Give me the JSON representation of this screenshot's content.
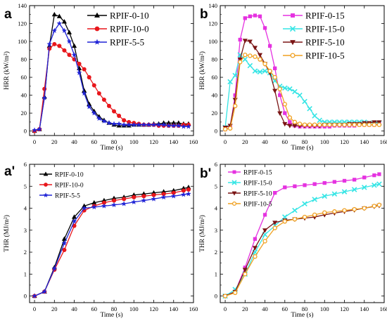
{
  "chart_data": [
    {
      "id": "a",
      "panel_label": "a",
      "type": "line",
      "xlabel": "Time (s)",
      "ylabel": "HRR (kW/m²)",
      "xlim": [
        -5,
        160
      ],
      "ylim": [
        -5,
        140
      ],
      "x_ticks": [
        0,
        20,
        40,
        60,
        80,
        100,
        120,
        140,
        160
      ],
      "y_ticks": [
        0,
        20,
        40,
        60,
        80,
        100,
        120,
        140
      ],
      "legend_position": "top-right",
      "series": [
        {
          "name": "RPIF-0-10",
          "color": "#000000",
          "marker": "triangle",
          "x": [
            0,
            5,
            10,
            15,
            20,
            25,
            30,
            35,
            40,
            45,
            50,
            55,
            60,
            65,
            70,
            75,
            80,
            85,
            90,
            95,
            100,
            105,
            110,
            115,
            120,
            125,
            130,
            135,
            140,
            145,
            150,
            155
          ],
          "y": [
            0,
            2,
            38,
            95,
            130,
            128,
            122,
            110,
            95,
            70,
            45,
            30,
            22,
            16,
            12,
            9,
            7,
            6,
            6,
            6,
            7,
            7,
            7,
            7,
            8,
            8,
            9,
            9,
            9,
            9,
            8,
            8
          ]
        },
        {
          "name": "RPIF-10-0",
          "color": "#e8161b",
          "marker": "circle",
          "x": [
            0,
            5,
            10,
            15,
            20,
            25,
            30,
            35,
            40,
            45,
            50,
            55,
            60,
            65,
            70,
            75,
            80,
            85,
            90,
            95,
            100,
            105,
            110,
            115,
            120,
            125,
            130,
            135,
            140,
            145,
            150,
            155
          ],
          "y": [
            0,
            2,
            47,
            92,
            97,
            95,
            90,
            85,
            80,
            75,
            69,
            60,
            51,
            42,
            35,
            28,
            22,
            17,
            12,
            10,
            9,
            8,
            7,
            7,
            7,
            6,
            6,
            6,
            6,
            6,
            7,
            7
          ]
        },
        {
          "name": "RPIF-5-5",
          "color": "#1f23d6",
          "marker": "star",
          "x": [
            0,
            5,
            10,
            15,
            20,
            25,
            30,
            35,
            40,
            45,
            50,
            55,
            60,
            65,
            70,
            75,
            80,
            85,
            90,
            95,
            100,
            105,
            110,
            115,
            120,
            125,
            130,
            135,
            140,
            145,
            150,
            155
          ],
          "y": [
            1,
            2,
            37,
            97,
            112,
            120,
            112,
            100,
            85,
            65,
            42,
            27,
            20,
            14,
            11,
            9,
            8,
            8,
            7,
            7,
            7,
            7,
            7,
            7,
            7,
            7,
            7,
            6,
            6,
            6,
            5,
            5
          ]
        }
      ]
    },
    {
      "id": "b",
      "panel_label": "b",
      "type": "line",
      "xlabel": "Time (s)",
      "ylabel": "HRR (kW/m²)",
      "xlim": [
        -5,
        160
      ],
      "ylim": [
        -5,
        140
      ],
      "x_ticks": [
        0,
        20,
        40,
        60,
        80,
        100,
        120,
        140,
        160
      ],
      "y_ticks": [
        0,
        20,
        40,
        60,
        80,
        100,
        120,
        140
      ],
      "legend_position": "top-right",
      "series": [
        {
          "name": "RPIF-0-15",
          "color": "#e532e0",
          "marker": "square",
          "x": [
            0,
            5,
            10,
            15,
            20,
            25,
            30,
            35,
            40,
            45,
            50,
            55,
            60,
            65,
            70,
            75,
            80,
            85,
            90,
            95,
            100,
            105,
            110,
            115,
            120,
            125,
            130,
            135,
            140,
            145,
            150,
            155
          ],
          "y": [
            2,
            4,
            40,
            102,
            126,
            128,
            129,
            128,
            115,
            95,
            70,
            40,
            20,
            10,
            6,
            5,
            5,
            5,
            5,
            5,
            5,
            5,
            6,
            6,
            6,
            6,
            6,
            7,
            7,
            7,
            7,
            8
          ]
        },
        {
          "name": "RPIF-15-0",
          "color": "#35e5e5",
          "marker": "x",
          "x": [
            0,
            5,
            10,
            15,
            20,
            25,
            30,
            35,
            40,
            45,
            50,
            55,
            60,
            65,
            70,
            75,
            80,
            85,
            90,
            95,
            100,
            105,
            110,
            115,
            120,
            125,
            130,
            135,
            140,
            145,
            150,
            155
          ],
          "y": [
            4,
            55,
            62,
            85,
            80,
            73,
            67,
            66,
            67,
            65,
            56,
            50,
            48,
            47,
            44,
            40,
            33,
            25,
            17,
            12,
            10,
            10,
            10,
            10,
            10,
            10,
            10,
            10,
            10,
            9,
            9,
            9
          ]
        },
        {
          "name": "RPIF-5-10",
          "color": "#7a1414",
          "marker": "triangle-down",
          "x": [
            0,
            5,
            10,
            15,
            20,
            25,
            30,
            35,
            40,
            45,
            50,
            55,
            60,
            65,
            70,
            75,
            80,
            85,
            90,
            95,
            100,
            105,
            110,
            115,
            120,
            125,
            130,
            135,
            140,
            145,
            150,
            155
          ],
          "y": [
            4,
            6,
            35,
            80,
            101,
            100,
            93,
            85,
            75,
            65,
            45,
            20,
            8,
            6,
            6,
            6,
            6,
            6,
            6,
            6,
            7,
            7,
            7,
            7,
            7,
            8,
            8,
            8,
            9,
            9,
            10,
            10
          ]
        },
        {
          "name": "RPIF-10-5",
          "color": "#f0a020",
          "marker": "circle-open",
          "x": [
            0,
            5,
            10,
            15,
            20,
            25,
            30,
            35,
            40,
            45,
            50,
            55,
            60,
            65,
            70,
            75,
            80,
            85,
            90,
            95,
            100,
            105,
            110,
            115,
            120,
            125,
            130,
            135,
            140,
            145,
            150,
            155
          ],
          "y": [
            2,
            3,
            28,
            77,
            85,
            84,
            83,
            80,
            75,
            67,
            60,
            47,
            30,
            15,
            10,
            8,
            7,
            7,
            7,
            7,
            7,
            7,
            7,
            7,
            7,
            7,
            7,
            7,
            7,
            7,
            7,
            7
          ]
        }
      ]
    },
    {
      "id": "a2",
      "panel_label": "a'",
      "type": "line",
      "xlabel": "Time (s)",
      "ylabel": "THR (MJ/m²)",
      "xlim": [
        -5,
        160
      ],
      "ylim": [
        -0.3,
        6
      ],
      "x_ticks": [
        0,
        20,
        40,
        60,
        80,
        100,
        120,
        140,
        160
      ],
      "y_ticks": [
        0,
        1,
        2,
        3,
        4,
        5,
        6
      ],
      "legend_position": "top-left",
      "series": [
        {
          "name": "RPIF-0-10",
          "color": "#000000",
          "marker": "triangle",
          "x": [
            0,
            10,
            20,
            30,
            40,
            50,
            60,
            70,
            80,
            90,
            100,
            110,
            120,
            130,
            140,
            150,
            155
          ],
          "y": [
            0,
            0.2,
            1.3,
            2.6,
            3.6,
            4.1,
            4.25,
            4.35,
            4.45,
            4.5,
            4.6,
            4.65,
            4.7,
            4.75,
            4.8,
            4.9,
            4.95
          ]
        },
        {
          "name": "RPIF-10-0",
          "color": "#e8161b",
          "marker": "circle",
          "x": [
            0,
            10,
            20,
            30,
            40,
            50,
            60,
            70,
            80,
            90,
            100,
            110,
            120,
            130,
            140,
            150,
            155
          ],
          "y": [
            0,
            0.2,
            1.2,
            2.1,
            3.2,
            3.9,
            4.1,
            4.25,
            4.35,
            4.42,
            4.5,
            4.55,
            4.6,
            4.65,
            4.7,
            4.8,
            4.85
          ]
        },
        {
          "name": "RPIF-5-5",
          "color": "#1f23d6",
          "marker": "star",
          "x": [
            0,
            10,
            20,
            30,
            40,
            50,
            60,
            70,
            80,
            90,
            100,
            110,
            120,
            130,
            140,
            150,
            155
          ],
          "y": [
            0,
            0.2,
            1.25,
            2.4,
            3.4,
            4.0,
            4.05,
            4.1,
            4.15,
            4.2,
            4.28,
            4.35,
            4.42,
            4.5,
            4.55,
            4.62,
            4.65
          ]
        }
      ]
    },
    {
      "id": "b2",
      "panel_label": "b'",
      "type": "line",
      "xlabel": "Time (s)",
      "ylabel": "THR (MJ/m²)",
      "xlim": [
        -5,
        160
      ],
      "ylim": [
        -0.3,
        6
      ],
      "x_ticks": [
        0,
        20,
        40,
        60,
        80,
        100,
        120,
        140,
        160
      ],
      "y_ticks": [
        0,
        1,
        2,
        3,
        4,
        5,
        6
      ],
      "legend_position": "top-left",
      "series": [
        {
          "name": "RPIF-0-15",
          "color": "#e532e0",
          "marker": "square",
          "x": [
            0,
            10,
            20,
            30,
            40,
            50,
            60,
            70,
            80,
            90,
            100,
            110,
            120,
            130,
            140,
            150,
            155
          ],
          "y": [
            0,
            0.2,
            1.3,
            2.6,
            3.7,
            4.7,
            4.95,
            5.0,
            5.05,
            5.1,
            5.15,
            5.2,
            5.25,
            5.3,
            5.4,
            5.5,
            5.55
          ]
        },
        {
          "name": "RPIF-15-0",
          "color": "#35e5e5",
          "marker": "x",
          "x": [
            0,
            10,
            20,
            30,
            40,
            50,
            60,
            70,
            80,
            90,
            100,
            110,
            120,
            130,
            140,
            150,
            155
          ],
          "y": [
            0,
            0.3,
            1.0,
            2.0,
            2.8,
            3.2,
            3.6,
            3.9,
            4.2,
            4.4,
            4.55,
            4.65,
            4.75,
            4.85,
            4.95,
            5.05,
            5.1
          ]
        },
        {
          "name": "RPIF-5-10",
          "color": "#7a1414",
          "marker": "triangle-down",
          "x": [
            0,
            10,
            20,
            30,
            40,
            50,
            60,
            70,
            80,
            90,
            100,
            110,
            120,
            130,
            140,
            150,
            155
          ],
          "y": [
            0,
            0.2,
            1.2,
            2.2,
            3.0,
            3.35,
            3.45,
            3.5,
            3.55,
            3.6,
            3.7,
            3.78,
            3.85,
            3.92,
            4.0,
            4.08,
            4.12
          ]
        },
        {
          "name": "RPIF-10-5",
          "color": "#f0a020",
          "marker": "circle-open",
          "x": [
            0,
            10,
            20,
            30,
            40,
            50,
            60,
            70,
            80,
            90,
            100,
            110,
            120,
            130,
            140,
            150,
            155
          ],
          "y": [
            0,
            0.15,
            1.0,
            1.8,
            2.5,
            3.1,
            3.4,
            3.5,
            3.6,
            3.7,
            3.8,
            3.85,
            3.9,
            3.95,
            4.0,
            4.1,
            4.15
          ]
        }
      ]
    }
  ]
}
